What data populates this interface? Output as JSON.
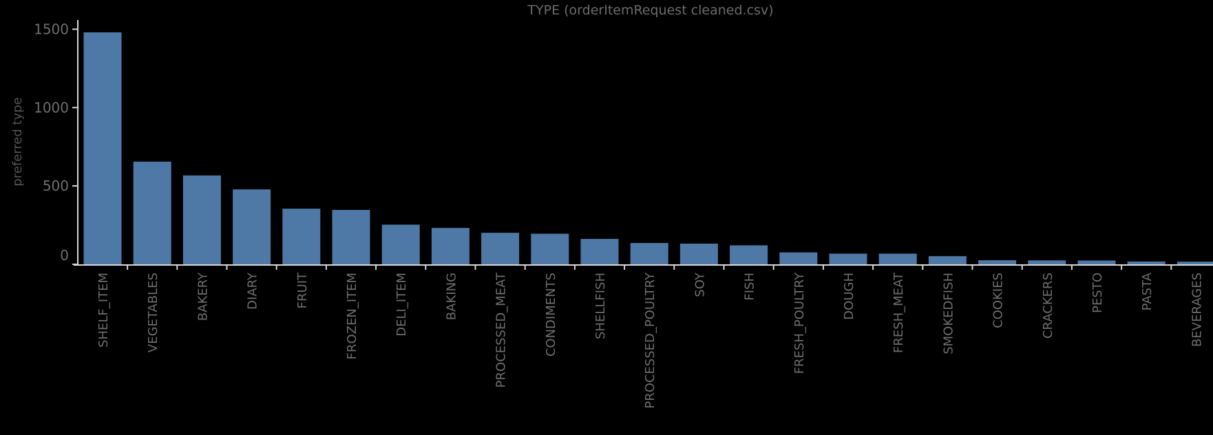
{
  "chart_data": {
    "type": "bar",
    "title": "TYPE (orderItemRequest cleaned.csv)",
    "xlabel": "",
    "ylabel": "preferred type",
    "ylim": [
      0,
      1500
    ],
    "yticks": [
      0,
      500,
      1000,
      1500
    ],
    "grid": false,
    "legend": "none",
    "categories": [
      "SHELF_ITEM",
      "VEGETABLES",
      "BAKERY",
      "DIARY",
      "FRUIT",
      "FROZEN_ITEM",
      "DELI_ITEM",
      "BAKING",
      "PROCESSED_MEAT",
      "CONDIMENTS",
      "SHELLFISH",
      "PROCESSED_POULTRY",
      "SOY",
      "FISH",
      "FRESH_POULTRY",
      "DOUGH",
      "FRESH_MEAT",
      "SMOKEDFISH",
      "COOKIES",
      "CRACKERS",
      "PESTO",
      "PASTA",
      "BEVERAGES"
    ],
    "values": [
      1480,
      655,
      567,
      478,
      355,
      347,
      253,
      232,
      201,
      195,
      162,
      136,
      132,
      121,
      76,
      68,
      68,
      52,
      26,
      25,
      24,
      18,
      17
    ],
    "colors": {
      "bar": "#4e79a7",
      "axis": "#d8d8d8",
      "text": "#6e6e6e"
    }
  }
}
